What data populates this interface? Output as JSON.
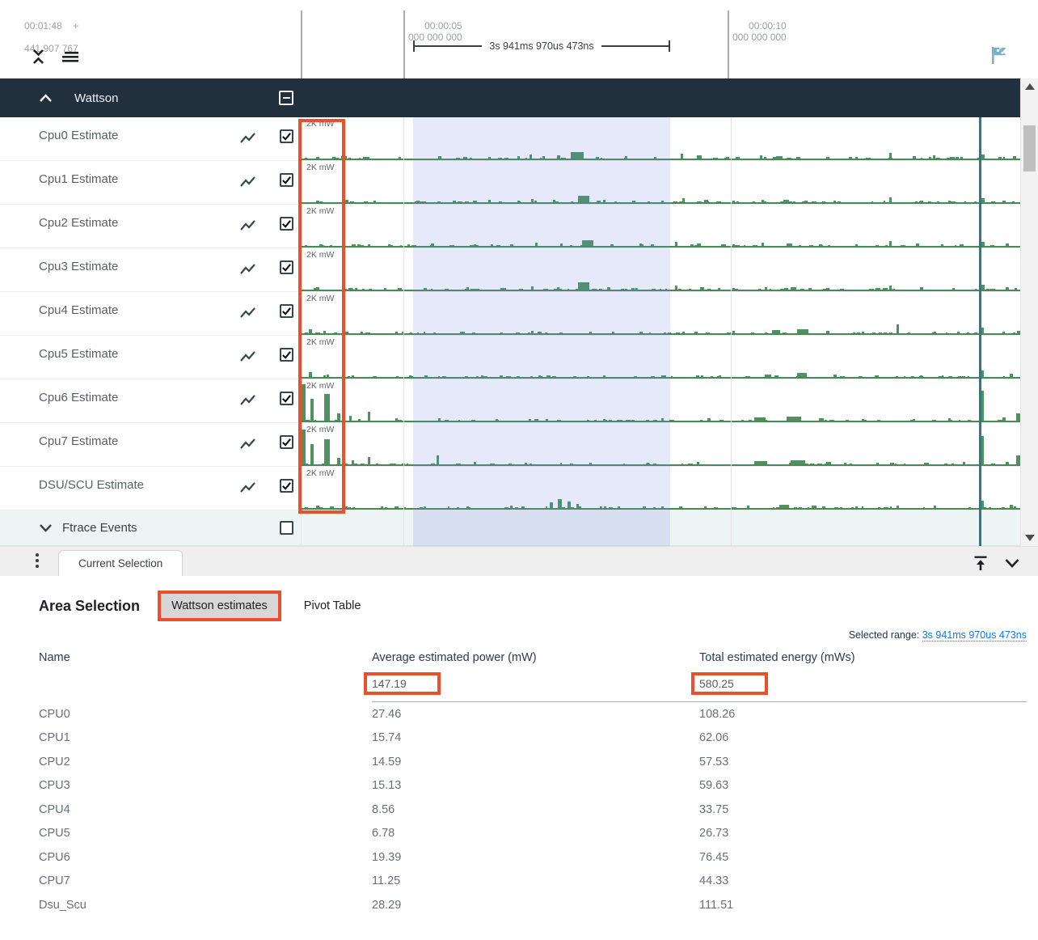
{
  "colors": {
    "annotation": "#e8512b",
    "track_green": "#4f9160",
    "selection_blue": "rgba(118,131,219,0.18)",
    "marker_teal": "#2a7a8c",
    "group_header_bg": "#22303e",
    "link_blue": "#1a73e8"
  },
  "timeline": {
    "origin_time": "00:01:48",
    "origin_plus": "+",
    "origin_ns": "441 907 767",
    "ticks": [
      {
        "time": "00:00:05",
        "ns": "000 000 000"
      },
      {
        "time": "00:00:10",
        "ns": "000 000 000"
      }
    ],
    "selection_duration": "3s 941ms 970us 473ns"
  },
  "tracks": {
    "group_label": "Wattson",
    "unit_label": "2K mW",
    "ftrace_label": "Ftrace Events",
    "rows": [
      {
        "name": "Cpu0 Estimate",
        "spikes": [
          [
            0.02,
            3,
            4
          ],
          [
            0.055,
            4,
            7
          ],
          [
            0.09,
            3,
            4
          ],
          [
            0.135,
            3,
            3
          ],
          [
            0.19,
            4,
            4
          ],
          [
            0.225,
            3,
            5
          ],
          [
            0.26,
            3,
            3
          ],
          [
            0.3,
            4,
            3
          ],
          [
            0.317,
            6,
            3
          ],
          [
            0.335,
            4,
            3
          ],
          [
            0.355,
            5,
            4
          ],
          [
            0.375,
            9,
            16
          ],
          [
            0.41,
            3,
            4
          ],
          [
            0.45,
            4,
            3
          ],
          [
            0.49,
            3,
            3
          ],
          [
            0.527,
            7,
            3
          ],
          [
            0.55,
            5,
            6
          ],
          [
            0.59,
            3,
            4
          ],
          [
            0.638,
            5,
            3
          ],
          [
            0.66,
            4,
            8
          ],
          [
            0.688,
            3,
            5
          ],
          [
            0.73,
            3,
            4
          ],
          [
            0.77,
            3,
            3
          ],
          [
            0.818,
            8,
            3
          ],
          [
            0.85,
            4,
            4
          ],
          [
            0.878,
            5,
            3
          ],
          [
            0.91,
            3,
            4
          ],
          [
            0.945,
            6,
            5
          ],
          [
            0.97,
            3,
            4
          ],
          [
            0.99,
            4,
            4
          ]
        ]
      },
      {
        "name": "Cpu1 Estimate",
        "spikes": [
          [
            0.02,
            3,
            4
          ],
          [
            0.06,
            4,
            5
          ],
          [
            0.1,
            3,
            3
          ],
          [
            0.16,
            3,
            4
          ],
          [
            0.21,
            3,
            4
          ],
          [
            0.26,
            4,
            3
          ],
          [
            0.3,
            3,
            3
          ],
          [
            0.32,
            5,
            3
          ],
          [
            0.35,
            4,
            3
          ],
          [
            0.385,
            9,
            14
          ],
          [
            0.42,
            4,
            3
          ],
          [
            0.46,
            3,
            4
          ],
          [
            0.5,
            3,
            3
          ],
          [
            0.53,
            6,
            3
          ],
          [
            0.56,
            4,
            5
          ],
          [
            0.6,
            3,
            3
          ],
          [
            0.64,
            4,
            3
          ],
          [
            0.67,
            4,
            7
          ],
          [
            0.7,
            3,
            4
          ],
          [
            0.74,
            3,
            3
          ],
          [
            0.818,
            7,
            3
          ],
          [
            0.86,
            3,
            4
          ],
          [
            0.9,
            3,
            3
          ],
          [
            0.945,
            6,
            5
          ],
          [
            0.975,
            3,
            4
          ]
        ]
      },
      {
        "name": "Cpu2 Estimate",
        "spikes": [
          [
            0.025,
            3,
            4
          ],
          [
            0.07,
            3,
            5
          ],
          [
            0.12,
            3,
            3
          ],
          [
            0.18,
            4,
            4
          ],
          [
            0.24,
            3,
            3
          ],
          [
            0.29,
            3,
            4
          ],
          [
            0.325,
            5,
            3
          ],
          [
            0.36,
            4,
            3
          ],
          [
            0.39,
            8,
            14
          ],
          [
            0.43,
            3,
            4
          ],
          [
            0.47,
            4,
            3
          ],
          [
            0.52,
            6,
            3
          ],
          [
            0.55,
            4,
            5
          ],
          [
            0.6,
            3,
            3
          ],
          [
            0.64,
            5,
            3
          ],
          [
            0.675,
            4,
            7
          ],
          [
            0.72,
            3,
            4
          ],
          [
            0.77,
            3,
            3
          ],
          [
            0.818,
            7,
            3
          ],
          [
            0.855,
            4,
            4
          ],
          [
            0.89,
            3,
            3
          ],
          [
            0.945,
            6,
            5
          ],
          [
            0.98,
            4,
            4
          ]
        ]
      },
      {
        "name": "Cpu3 Estimate",
        "spikes": [
          [
            0.02,
            4,
            4
          ],
          [
            0.065,
            3,
            5
          ],
          [
            0.115,
            3,
            3
          ],
          [
            0.17,
            3,
            4
          ],
          [
            0.23,
            4,
            3
          ],
          [
            0.28,
            3,
            4
          ],
          [
            0.32,
            5,
            3
          ],
          [
            0.355,
            4,
            3
          ],
          [
            0.385,
            10,
            14
          ],
          [
            0.425,
            4,
            4
          ],
          [
            0.465,
            3,
            3
          ],
          [
            0.52,
            6,
            3
          ],
          [
            0.555,
            4,
            5
          ],
          [
            0.6,
            3,
            3
          ],
          [
            0.645,
            4,
            3
          ],
          [
            0.68,
            4,
            7
          ],
          [
            0.73,
            3,
            4
          ],
          [
            0.818,
            6,
            3
          ],
          [
            0.86,
            4,
            4
          ],
          [
            0.905,
            3,
            3
          ],
          [
            0.945,
            7,
            5
          ],
          [
            0.98,
            4,
            4
          ]
        ]
      },
      {
        "name": "Cpu4 Estimate",
        "spikes": [
          [
            0.01,
            6,
            4
          ],
          [
            0.03,
            4,
            3
          ],
          [
            0.06,
            3,
            3
          ],
          [
            0.14,
            3,
            3
          ],
          [
            0.22,
            3,
            3
          ],
          [
            0.32,
            4,
            3
          ],
          [
            0.4,
            3,
            3
          ],
          [
            0.47,
            3,
            3
          ],
          [
            0.53,
            3,
            3
          ],
          [
            0.6,
            4,
            3
          ],
          [
            0.655,
            5,
            10
          ],
          [
            0.69,
            6,
            14
          ],
          [
            0.73,
            4,
            4
          ],
          [
            0.78,
            3,
            3
          ],
          [
            0.828,
            12,
            3
          ],
          [
            0.88,
            3,
            3
          ],
          [
            0.945,
            8,
            4
          ],
          [
            0.975,
            3,
            3
          ],
          [
            0.995,
            4,
            4
          ]
        ]
      },
      {
        "name": "Cpu5 Estimate",
        "spikes": [
          [
            0.01,
            7,
            4
          ],
          [
            0.035,
            4,
            3
          ],
          [
            0.07,
            3,
            3
          ],
          [
            0.15,
            3,
            3
          ],
          [
            0.25,
            3,
            3
          ],
          [
            0.33,
            3,
            3
          ],
          [
            0.42,
            3,
            3
          ],
          [
            0.5,
            3,
            3
          ],
          [
            0.58,
            3,
            3
          ],
          [
            0.645,
            4,
            8
          ],
          [
            0.69,
            6,
            12
          ],
          [
            0.74,
            4,
            4
          ],
          [
            0.8,
            3,
            3
          ],
          [
            0.86,
            3,
            3
          ],
          [
            0.945,
            9,
            4
          ],
          [
            0.985,
            5,
            4
          ]
        ]
      },
      {
        "name": "Cpu6 Estimate",
        "spikes": [
          [
            0.0,
            46,
            5
          ],
          [
            0.012,
            28,
            4
          ],
          [
            0.032,
            34,
            7
          ],
          [
            0.05,
            10,
            4
          ],
          [
            0.066,
            7,
            3
          ],
          [
            0.092,
            12,
            3
          ],
          [
            0.13,
            4,
            3
          ],
          [
            0.19,
            4,
            3
          ],
          [
            0.27,
            3,
            3
          ],
          [
            0.34,
            3,
            3
          ],
          [
            0.42,
            3,
            3
          ],
          [
            0.5,
            4,
            3
          ],
          [
            0.565,
            4,
            4
          ],
          [
            0.63,
            5,
            14
          ],
          [
            0.675,
            6,
            18
          ],
          [
            0.72,
            4,
            6
          ],
          [
            0.78,
            3,
            3
          ],
          [
            0.85,
            3,
            3
          ],
          [
            0.9,
            4,
            3
          ],
          [
            0.945,
            38,
            4
          ],
          [
            0.975,
            5,
            4
          ],
          [
            0.995,
            10,
            5
          ]
        ]
      },
      {
        "name": "Cpu7 Estimate",
        "spikes": [
          [
            0.0,
            44,
            5
          ],
          [
            0.012,
            26,
            4
          ],
          [
            0.032,
            32,
            7
          ],
          [
            0.05,
            9,
            4
          ],
          [
            0.07,
            6,
            3
          ],
          [
            0.092,
            10,
            3
          ],
          [
            0.188,
            12,
            3
          ],
          [
            0.24,
            4,
            3
          ],
          [
            0.31,
            3,
            3
          ],
          [
            0.4,
            3,
            3
          ],
          [
            0.48,
            3,
            3
          ],
          [
            0.55,
            4,
            3
          ],
          [
            0.63,
            5,
            16
          ],
          [
            0.68,
            6,
            18
          ],
          [
            0.73,
            4,
            6
          ],
          [
            0.8,
            3,
            3
          ],
          [
            0.87,
            3,
            3
          ],
          [
            0.92,
            4,
            3
          ],
          [
            0.945,
            36,
            4
          ],
          [
            0.98,
            4,
            4
          ],
          [
            0.995,
            12,
            5
          ]
        ]
      },
      {
        "name": "DSU/SCU Estimate",
        "spikes": [
          [
            0.02,
            4,
            4
          ],
          [
            0.06,
            3,
            4
          ],
          [
            0.11,
            3,
            3
          ],
          [
            0.17,
            3,
            3
          ],
          [
            0.23,
            3,
            3
          ],
          [
            0.29,
            4,
            3
          ],
          [
            0.345,
            8,
            4
          ],
          [
            0.357,
            12,
            5
          ],
          [
            0.37,
            9,
            4
          ],
          [
            0.383,
            6,
            3
          ],
          [
            0.44,
            3,
            3
          ],
          [
            0.5,
            3,
            3
          ],
          [
            0.56,
            3,
            3
          ],
          [
            0.62,
            4,
            3
          ],
          [
            0.665,
            5,
            12
          ],
          [
            0.71,
            4,
            6
          ],
          [
            0.77,
            3,
            3
          ],
          [
            0.828,
            4,
            3
          ],
          [
            0.88,
            4,
            3
          ],
          [
            0.945,
            10,
            4
          ],
          [
            0.985,
            5,
            4
          ]
        ]
      }
    ]
  },
  "tabbar": {
    "current_tab": "Current Selection"
  },
  "panel": {
    "title": "Area Selection",
    "tabs": [
      {
        "label": "Wattson estimates",
        "active": true
      },
      {
        "label": "Pivot Table",
        "active": false
      }
    ],
    "selected_range_label": "Selected range:",
    "selected_range_value": "3s 941ms 970us 473ns",
    "table": {
      "columns": [
        "Name",
        "Average estimated power (mW)",
        "Total estimated energy (mWs)"
      ],
      "totals": {
        "avg_power": "147.19",
        "total_energy": "580.25"
      },
      "rows": [
        [
          "CPU0",
          "27.46",
          "108.26"
        ],
        [
          "CPU1",
          "15.74",
          "62.06"
        ],
        [
          "CPU2",
          "14.59",
          "57.53"
        ],
        [
          "CPU3",
          "15.13",
          "59.63"
        ],
        [
          "CPU4",
          "8.56",
          "33.75"
        ],
        [
          "CPU5",
          "6.78",
          "26.73"
        ],
        [
          "CPU6",
          "19.39",
          "76.45"
        ],
        [
          "CPU7",
          "11.25",
          "44.33"
        ],
        [
          "Dsu_Scu",
          "28.29",
          "111.51"
        ]
      ]
    }
  }
}
